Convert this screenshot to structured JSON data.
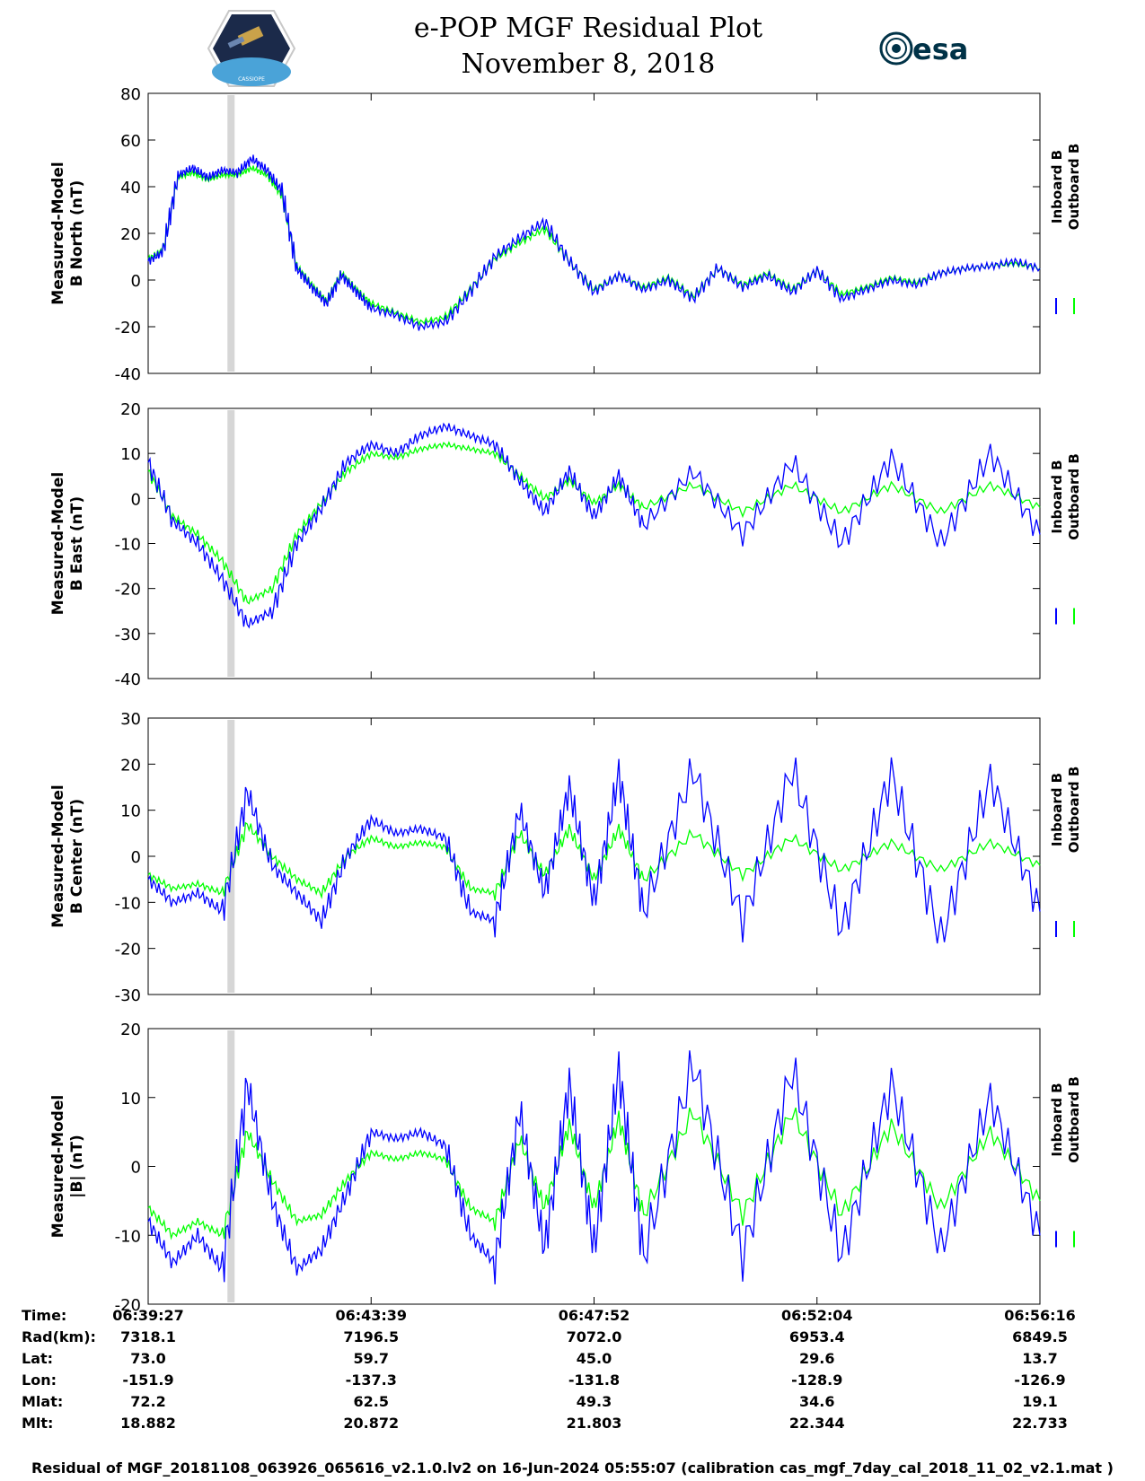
{
  "header": {
    "title_line1": "e-POP MGF Residual Plot",
    "title_line2": "November 8, 2018",
    "logo_left_text": "CASSIOPE",
    "logo_right_text": "esa"
  },
  "chart_data": [
    {
      "type": "line",
      "ylabel": [
        "Measured-Model",
        "B North (nT)"
      ],
      "ylim": [
        -40,
        80
      ],
      "yticks": [
        -40,
        -20,
        0,
        20,
        40,
        60,
        80
      ],
      "legend": [
        "Inboard B",
        "Outboard B"
      ],
      "legend_position": "right",
      "series": [
        {
          "name": "Inboard B",
          "color": "#0000ff",
          "x": [
            0,
            0.3,
            0.6,
            0.9,
            1.2,
            1.5,
            1.8,
            2.1,
            2.4,
            2.7,
            3.0,
            3.3,
            3.6,
            3.9,
            4.2,
            4.5,
            5.0,
            5.5,
            6.0,
            6.5,
            7.0,
            7.5,
            8.0,
            8.5,
            9.0,
            9.5,
            10.0,
            10.5,
            11.0,
            11.5,
            12.0,
            12.5,
            13.0,
            13.5,
            14.0,
            14.5,
            15.0,
            15.5,
            16.0,
            16.5,
            17.0,
            17.5,
            18.0
          ],
          "values": [
            8,
            12,
            45,
            48,
            44,
            47,
            46,
            52,
            47,
            38,
            5,
            -3,
            -10,
            2,
            -5,
            -12,
            -15,
            -20,
            -18,
            -5,
            10,
            18,
            25,
            8,
            -5,
            2,
            -4,
            0,
            -8,
            5,
            -3,
            2,
            -5,
            4,
            -8,
            -4,
            0,
            -2,
            3,
            5,
            6,
            8,
            5
          ]
        },
        {
          "name": "Outboard B",
          "color": "#00ff00",
          "x": [
            0,
            0.3,
            0.6,
            0.9,
            1.2,
            1.5,
            1.8,
            2.1,
            2.4,
            2.7,
            3.0,
            3.3,
            3.6,
            3.9,
            4.2,
            4.5,
            5.0,
            5.5,
            6.0,
            6.5,
            7.0,
            7.5,
            8.0,
            8.5,
            9.0,
            9.5,
            10.0,
            10.5,
            11.0,
            11.5,
            12.0,
            12.5,
            13.0,
            13.5,
            14.0,
            14.5,
            15.0,
            15.5,
            16.0,
            16.5,
            17.0,
            17.5,
            18.0
          ],
          "values": [
            9,
            13,
            44,
            46,
            43,
            45,
            45,
            48,
            45,
            36,
            6,
            -2,
            -9,
            3,
            -4,
            -10,
            -14,
            -18,
            -16,
            -4,
            9,
            16,
            22,
            8,
            -4,
            2,
            -3,
            1,
            -7,
            5,
            -2,
            3,
            -4,
            4,
            -6,
            -3,
            1,
            -1,
            3,
            5,
            6,
            7,
            5
          ]
        }
      ]
    },
    {
      "type": "line",
      "ylabel": [
        "Measured-Model",
        "B East (nT)"
      ],
      "ylim": [
        -40,
        20
      ],
      "yticks": [
        -40,
        -30,
        -20,
        -10,
        0,
        10,
        20
      ],
      "legend": [
        "Inboard B",
        "Outboard B"
      ],
      "legend_position": "right",
      "series": [
        {
          "name": "Inboard B",
          "color": "#0000ff",
          "x": [
            0,
            0.5,
            1.0,
            1.5,
            2.0,
            2.5,
            3.0,
            3.5,
            4.0,
            4.5,
            5.0,
            5.5,
            6.0,
            6.5,
            7.0,
            7.5,
            8.0,
            8.5,
            9.0,
            9.5,
            10.0,
            11.0,
            12.0,
            13.0,
            14.0,
            15.0,
            16.0,
            17.0,
            18.0
          ],
          "values": [
            8,
            -5,
            -10,
            -18,
            -28,
            -25,
            -10,
            -2,
            8,
            12,
            10,
            14,
            16,
            14,
            12,
            4,
            -3,
            6,
            -4,
            5,
            -6,
            6,
            -8,
            8,
            -10,
            9,
            -10,
            10,
            -8
          ]
        },
        {
          "name": "Outboard B",
          "color": "#00ff00",
          "x": [
            0,
            0.5,
            1.0,
            1.5,
            2.0,
            2.5,
            3.0,
            3.5,
            4.0,
            4.5,
            5.0,
            5.5,
            6.0,
            6.5,
            7.0,
            7.5,
            8.0,
            8.5,
            9.0,
            9.5,
            10.0,
            11.0,
            12.0,
            13.0,
            14.0,
            15.0,
            16.0,
            17.0,
            18.0
          ],
          "values": [
            6,
            -4,
            -8,
            -14,
            -23,
            -20,
            -8,
            -1,
            6,
            10,
            9,
            11,
            12,
            11,
            10,
            5,
            0,
            4,
            -1,
            3,
            -2,
            3,
            -3,
            3,
            -3,
            3,
            -3,
            3,
            -2
          ]
        }
      ]
    },
    {
      "type": "line",
      "ylabel": [
        "Measured-Model",
        "B Center (nT)"
      ],
      "ylim": [
        -30,
        30
      ],
      "yticks": [
        -30,
        -20,
        -10,
        0,
        10,
        20,
        30
      ],
      "legend": [
        "Inboard B",
        "Outboard B"
      ],
      "legend_position": "right",
      "series": [
        {
          "name": "Inboard B",
          "color": "#0000ff",
          "x": [
            0,
            0.5,
            1.0,
            1.5,
            2.0,
            2.5,
            3.0,
            3.5,
            4.0,
            4.5,
            5.0,
            5.5,
            6.0,
            6.5,
            7.0,
            7.5,
            8.0,
            8.5,
            9.0,
            9.5,
            10.0,
            11.0,
            12.0,
            13.0,
            14.0,
            15.0,
            16.0,
            17.0,
            18.0
          ],
          "values": [
            -5,
            -10,
            -8,
            -12,
            14,
            -2,
            -8,
            -14,
            0,
            8,
            5,
            6,
            4,
            -12,
            -14,
            10,
            -8,
            15,
            -10,
            18,
            -12,
            19,
            -14,
            19,
            -16,
            18,
            -18,
            17,
            -12
          ]
        },
        {
          "name": "Outboard B",
          "color": "#00ff00",
          "x": [
            0,
            0.5,
            1.0,
            1.5,
            2.0,
            2.5,
            3.0,
            3.5,
            4.0,
            4.5,
            5.0,
            5.5,
            6.0,
            6.5,
            7.0,
            7.5,
            8.0,
            8.5,
            9.0,
            9.5,
            10.0,
            11.0,
            12.0,
            13.0,
            14.0,
            15.0,
            16.0,
            17.0,
            18.0
          ],
          "values": [
            -4,
            -7,
            -6,
            -8,
            7,
            0,
            -5,
            -8,
            0,
            4,
            2,
            3,
            2,
            -7,
            -8,
            5,
            -4,
            6,
            -5,
            6,
            -5,
            5,
            -4,
            4,
            -3,
            3,
            -3,
            3,
            -2
          ]
        }
      ]
    },
    {
      "type": "line",
      "ylabel": [
        "Measured-Model",
        "|B| (nT)"
      ],
      "ylim": [
        -20,
        20
      ],
      "yticks": [
        -20,
        -10,
        0,
        10,
        20
      ],
      "legend": [
        "Inboard B",
        "Outboard B"
      ],
      "legend_position": "right",
      "series": [
        {
          "name": "Inboard B",
          "color": "#0000ff",
          "x": [
            0,
            0.5,
            1.0,
            1.5,
            2.0,
            2.5,
            3.0,
            3.5,
            4.0,
            4.5,
            5.0,
            5.5,
            6.0,
            6.5,
            7.0,
            7.5,
            8.0,
            8.5,
            9.0,
            9.5,
            10.0,
            11.0,
            12.0,
            13.0,
            14.0,
            15.0,
            16.0,
            17.0,
            18.0
          ],
          "values": [
            -8,
            -14,
            -10,
            -15,
            12,
            -5,
            -15,
            -12,
            -4,
            5,
            4,
            5,
            3,
            -10,
            -14,
            8,
            -12,
            12,
            -12,
            14,
            -13,
            15,
            -13,
            14,
            -13,
            12,
            -12,
            10,
            -10
          ]
        },
        {
          "name": "Outboard B",
          "color": "#00ff00",
          "x": [
            0,
            0.5,
            1.0,
            1.5,
            2.0,
            2.5,
            3.0,
            3.5,
            4.0,
            4.5,
            5.0,
            5.5,
            6.0,
            6.5,
            7.0,
            7.5,
            8.0,
            8.5,
            9.0,
            9.5,
            10.0,
            11.0,
            12.0,
            13.0,
            14.0,
            15.0,
            16.0,
            17.0,
            18.0
          ],
          "values": [
            -6,
            -10,
            -8,
            -10,
            5,
            -2,
            -8,
            -7,
            -2,
            2,
            1,
            2,
            1,
            -6,
            -8,
            4,
            -6,
            6,
            -6,
            7,
            -7,
            8,
            -7,
            8,
            -7,
            6,
            -6,
            5,
            -5
          ]
        }
      ]
    }
  ],
  "table": {
    "row_labels": [
      "Time:",
      "Rad(km):",
      "Lat:",
      "Lon:",
      "Mlat:",
      "Mlt:"
    ],
    "columns": [
      [
        "06:39:27",
        "7318.1",
        "73.0",
        "-151.9",
        "72.2",
        "18.882"
      ],
      [
        "06:43:39",
        "7196.5",
        "59.7",
        "-137.3",
        "62.5",
        "20.872"
      ],
      [
        "06:47:52",
        "7072.0",
        "45.0",
        "-131.8",
        "49.3",
        "21.803"
      ],
      [
        "06:52:04",
        "6953.4",
        "29.6",
        "-128.9",
        "34.6",
        "22.344"
      ],
      [
        "06:56:16",
        "6849.5",
        "13.7",
        "-126.9",
        "19.1",
        "22.733"
      ]
    ]
  },
  "footer": "Residual of MGF_20181108_063926_065616_v2.1.0.lv2 on 16-Jun-2024 05:55:07 (calibration cas_mgf_7day_cal_2018_11_02_v2.1.mat )"
}
